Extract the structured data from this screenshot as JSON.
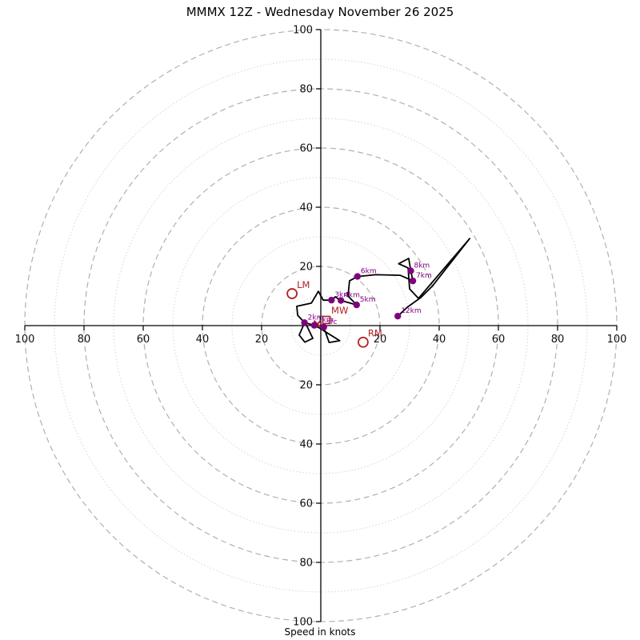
{
  "title": "MMMX 12Z - Wednesday November 26 2025",
  "xlabel": "Speed in knots",
  "chart_data": {
    "type": "line",
    "subtype": "hodograph",
    "units": "knots",
    "title": "MMMX 12Z - Wednesday November 26 2025",
    "xlabel": "Speed in knots",
    "max_speed": 100,
    "ring_interval_major_kt": 20,
    "ring_interval_minor_kt": 10,
    "axis_tick_labels": [
      20,
      40,
      60,
      80,
      100
    ],
    "grid": "polar-rings",
    "trace_uv_knots": [
      [
        1.0,
        -0.5
      ],
      [
        2.8,
        -5.7
      ],
      [
        6.4,
        -5.1
      ],
      [
        1.6,
        -2.1
      ],
      [
        -0.3,
        -0.9
      ],
      [
        -2.2,
        0.1
      ],
      [
        -5.5,
        1.0
      ],
      [
        -6.3,
        -0.9
      ],
      [
        -7.3,
        -3.2
      ],
      [
        -5.4,
        -5.6
      ],
      [
        -2.7,
        -4.3
      ],
      [
        -5.0,
        0.5
      ],
      [
        -7.8,
        3.5
      ],
      [
        -8.1,
        6.5
      ],
      [
        -3.2,
        7.6
      ],
      [
        -0.8,
        11.6
      ],
      [
        0.8,
        8.6
      ],
      [
        3.6,
        8.6
      ],
      [
        4.9,
        9.7
      ],
      [
        6.8,
        8.5
      ],
      [
        12.1,
        7.0
      ],
      [
        9.2,
        10.0
      ],
      [
        9.7,
        15.1
      ],
      [
        12.4,
        16.6
      ],
      [
        18.6,
        17.2
      ],
      [
        26.8,
        17.0
      ],
      [
        31.1,
        15.1
      ],
      [
        30.4,
        18.5
      ],
      [
        29.7,
        22.7
      ],
      [
        26.3,
        20.9
      ],
      [
        29.5,
        19.5
      ],
      [
        30.0,
        12.4
      ],
      [
        33.0,
        9.2
      ],
      [
        50.3,
        29.4
      ],
      [
        37.8,
        13.5
      ],
      [
        33.8,
        9.5
      ],
      [
        29.2,
        6.2
      ],
      [
        26.0,
        3.2
      ]
    ],
    "height_labels": [
      {
        "label": "sfc",
        "u": 1.0,
        "v": -0.5
      },
      {
        "label": "1km",
        "u": -2.2,
        "v": 0.1
      },
      {
        "label": "2km",
        "u": -5.5,
        "v": 1.0
      },
      {
        "label": "3km",
        "u": 3.6,
        "v": 8.6
      },
      {
        "label": "4km",
        "u": 6.8,
        "v": 8.5
      },
      {
        "label": "5km",
        "u": 12.1,
        "v": 7.0
      },
      {
        "label": "6km",
        "u": 12.4,
        "v": 16.6
      },
      {
        "label": "7km",
        "u": 31.1,
        "v": 15.1
      },
      {
        "label": "8km",
        "u": 30.4,
        "v": 18.5
      },
      {
        "label": "12km",
        "u": 26.0,
        "v": 3.2
      }
    ],
    "storm_motion_markers": [
      {
        "label": "LM",
        "shape": "circle",
        "u": -9.7,
        "v": 10.8
      },
      {
        "label": "RM",
        "shape": "circle",
        "u": 14.3,
        "v": -5.6
      },
      {
        "label": "MW",
        "shape": "square",
        "u": 1.9,
        "v": 1.9
      },
      {
        "label": "",
        "shape": "x",
        "u": -1.1,
        "v": 0.5
      }
    ],
    "colors": {
      "trace": "#000000",
      "height_points": "#800080",
      "storm_markers": "#b22222",
      "ring_major": "#b0b0b0",
      "ring_minor": "#d8d8d8",
      "axis": "#000000",
      "tick_text": "#111111"
    }
  }
}
